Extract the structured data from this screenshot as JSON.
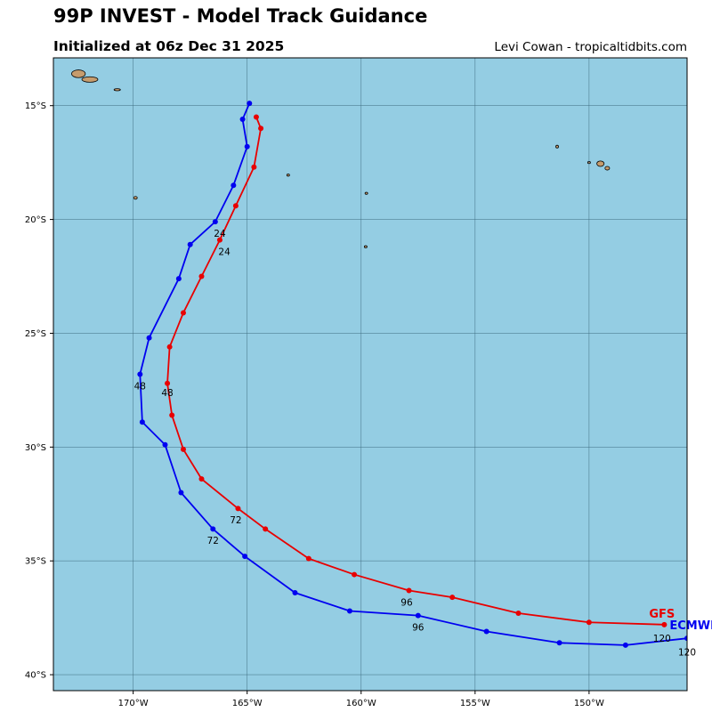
{
  "header": {
    "title": "99P INVEST - Model Track Guidance",
    "subtitle": "Initialized at 06z Dec 31 2025",
    "credit": "Levi Cowan - tropicaltidbits.com"
  },
  "map": {
    "lon_range": [
      -173.5,
      -145.7
    ],
    "lat_range": [
      -40.7,
      -12.9
    ],
    "ocean_color": "#94cde3",
    "land_color": "#c69c6d",
    "grid_color": "#3d6b80",
    "lon_ticks": [
      {
        "value": -170,
        "label": "170°W"
      },
      {
        "value": -165,
        "label": "165°W"
      },
      {
        "value": -160,
        "label": "160°W"
      },
      {
        "value": -155,
        "label": "155°W"
      },
      {
        "value": -150,
        "label": "150°W"
      }
    ],
    "lat_ticks": [
      {
        "value": -15,
        "label": "15°S"
      },
      {
        "value": -20,
        "label": "20°S"
      },
      {
        "value": -25,
        "label": "25°S"
      },
      {
        "value": -30,
        "label": "30°S"
      },
      {
        "value": -35,
        "label": "35°S"
      },
      {
        "value": -40,
        "label": "40°S"
      }
    ],
    "islands": [
      {
        "name": "samoa-upolu",
        "lon": -171.9,
        "lat": -13.85,
        "rlon": 0.35,
        "rlat": 0.12
      },
      {
        "name": "samoa-savaii",
        "lon": -172.4,
        "lat": -13.6,
        "rlon": 0.3,
        "rlat": 0.17
      },
      {
        "name": "tutuila",
        "lon": -170.7,
        "lat": -14.3,
        "rlon": 0.14,
        "rlat": 0.04
      },
      {
        "name": "niue",
        "lon": -169.9,
        "lat": -19.05,
        "rlon": 0.08,
        "rlat": 0.06
      },
      {
        "name": "palmerston",
        "lon": -163.2,
        "lat": -18.05,
        "rlon": 0.04,
        "rlat": 0.03
      },
      {
        "name": "aitutaki",
        "lon": -159.77,
        "lat": -18.85,
        "rlon": 0.05,
        "rlat": 0.04
      },
      {
        "name": "rarotonga",
        "lon": -159.8,
        "lat": -21.2,
        "rlon": 0.06,
        "rlat": 0.03
      },
      {
        "name": "society-a",
        "lon": -149.5,
        "lat": -17.55,
        "rlon": 0.16,
        "rlat": 0.12
      },
      {
        "name": "society-b",
        "lon": -149.2,
        "lat": -17.75,
        "rlon": 0.1,
        "rlat": 0.08
      },
      {
        "name": "society-c",
        "lon": -150.0,
        "lat": -17.5,
        "rlon": 0.06,
        "rlat": 0.04
      },
      {
        "name": "raiatea",
        "lon": -151.4,
        "lat": -16.8,
        "rlon": 0.05,
        "rlat": 0.06
      }
    ]
  },
  "models": [
    {
      "name": "GFS",
      "color": "#e80000",
      "points": [
        [
          -164.6,
          -15.5
        ],
        [
          -164.4,
          -16.0
        ],
        [
          -164.7,
          -17.7
        ],
        [
          -165.5,
          -19.4
        ],
        [
          -166.2,
          -20.9
        ],
        [
          -167.0,
          -22.5
        ],
        [
          -167.8,
          -24.1
        ],
        [
          -168.4,
          -25.6
        ],
        [
          -168.5,
          -27.2
        ],
        [
          -168.3,
          -28.6
        ],
        [
          -167.8,
          -30.1
        ],
        [
          -167.0,
          -31.4
        ],
        [
          -165.4,
          -32.7
        ],
        [
          -164.2,
          -33.6
        ],
        [
          -162.3,
          -34.9
        ],
        [
          -160.3,
          -35.6
        ],
        [
          -157.9,
          -36.3
        ],
        [
          -156.0,
          -36.6
        ],
        [
          -153.1,
          -37.3
        ],
        [
          -150.0,
          -37.7
        ],
        [
          -146.7,
          -37.8
        ]
      ],
      "labels": [
        {
          "text": "24",
          "lon": -166.0,
          "lat": -21.4
        },
        {
          "text": "48",
          "lon": -168.5,
          "lat": -27.6
        },
        {
          "text": "72",
          "lon": -165.5,
          "lat": -33.2
        },
        {
          "text": "96",
          "lon": -158.0,
          "lat": -36.8
        },
        {
          "text": "120",
          "lon": -146.8,
          "lat": -38.4
        }
      ],
      "name_pos": {
        "lon": -146.8,
        "lat": -37.3
      }
    },
    {
      "name": "ECMWF",
      "color": "#0000f0",
      "points": [
        [
          -164.9,
          -14.9
        ],
        [
          -165.2,
          -15.6
        ],
        [
          -165.0,
          -16.8
        ],
        [
          -165.6,
          -18.5
        ],
        [
          -166.4,
          -20.1
        ],
        [
          -167.5,
          -21.1
        ],
        [
          -168.0,
          -22.6
        ],
        [
          -169.3,
          -25.2
        ],
        [
          -169.7,
          -26.8
        ],
        [
          -169.6,
          -28.9
        ],
        [
          -168.6,
          -29.9
        ],
        [
          -167.9,
          -32.0
        ],
        [
          -166.5,
          -33.6
        ],
        [
          -165.1,
          -34.8
        ],
        [
          -162.9,
          -36.4
        ],
        [
          -160.5,
          -37.2
        ],
        [
          -157.5,
          -37.4
        ],
        [
          -154.5,
          -38.1
        ],
        [
          -151.3,
          -38.6
        ],
        [
          -148.4,
          -38.7
        ],
        [
          -145.7,
          -38.4
        ]
      ],
      "labels": [
        {
          "text": "24",
          "lon": -166.2,
          "lat": -20.6
        },
        {
          "text": "48",
          "lon": -169.7,
          "lat": -27.3
        },
        {
          "text": "72",
          "lon": -166.5,
          "lat": -34.1
        },
        {
          "text": "96",
          "lon": -157.5,
          "lat": -37.9
        },
        {
          "text": "120",
          "lon": -145.7,
          "lat": -39.0
        }
      ],
      "name_pos": {
        "lon": -145.4,
        "lat": -37.8
      }
    }
  ]
}
